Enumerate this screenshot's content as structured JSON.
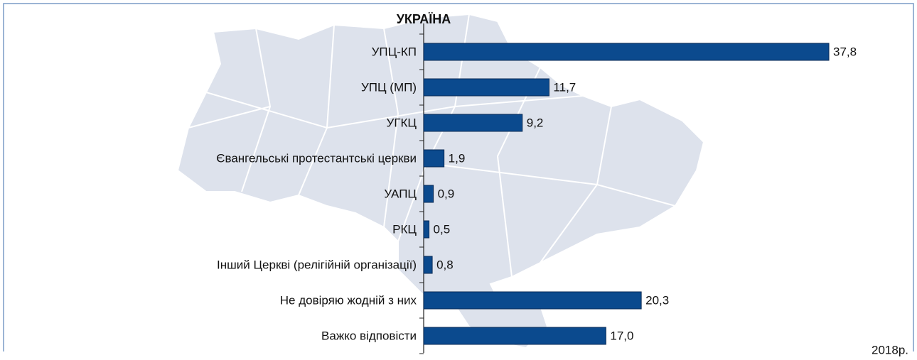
{
  "chart_data": {
    "type": "bar",
    "orientation": "horizontal",
    "title": "УКРАЇНА",
    "note": "2018р.",
    "categories": [
      "УПЦ-КП",
      "УПЦ (МП)",
      "УГКЦ",
      "Євангельські протестантські церкви",
      "УАПЦ",
      "РКЦ",
      "Інший Церкві (релігійній організації)",
      "Не довіряю жодній з них",
      "Важко відповісти"
    ],
    "values": [
      37.8,
      11.7,
      9.2,
      1.9,
      0.9,
      0.5,
      0.8,
      20.3,
      17.0
    ],
    "value_labels": [
      "37,8",
      "11,7",
      "9,2",
      "1,9",
      "0,9",
      "0,5",
      "0,8",
      "20,3",
      "17,0"
    ],
    "color": "#0b4a8e"
  }
}
